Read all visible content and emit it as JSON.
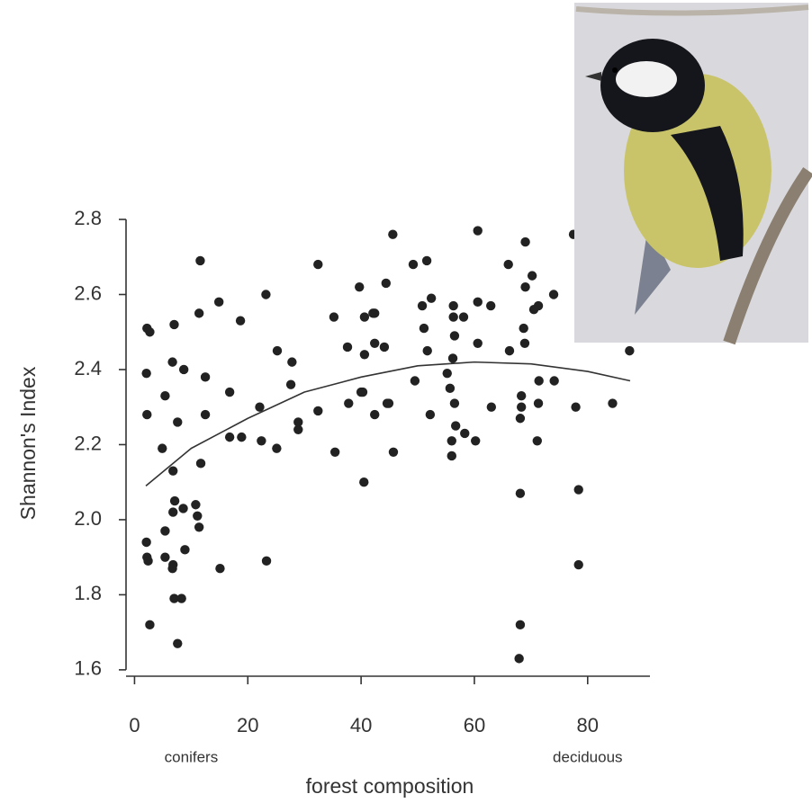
{
  "chart_data": {
    "type": "scatter",
    "x_label": "forest composition",
    "y_label": "Shannon's Index",
    "annotations": [
      "conifers",
      "deciduous"
    ],
    "xlim": [
      -1.5,
      91
    ],
    "ylim": [
      1.583,
      2.83
    ],
    "xticks": [
      0,
      20,
      40,
      60,
      80
    ],
    "yticks": [
      {
        "value": 1.6,
        "label": "1.6"
      },
      {
        "value": 1.8,
        "label": "1.8"
      },
      {
        "value": 2.0,
        "label": "2.0"
      },
      {
        "value": 2.2,
        "label": "2.2"
      },
      {
        "value": 2.4,
        "label": "2.4"
      },
      {
        "value": 2.6,
        "label": "2.6"
      },
      {
        "value": 2.8,
        "label": "2.8"
      }
    ],
    "series": [
      {
        "color": "#222222",
        "x": [
          2.2,
          2.7,
          2.1,
          2.2,
          2.1,
          2.2,
          2.4,
          2.7,
          4.9,
          5.4,
          5.4,
          5.4,
          7.0,
          6.7,
          7.6,
          8.7,
          6.8,
          7.1,
          6.8,
          6.8,
          6.7,
          7.0,
          8.3,
          7.6,
          8.6,
          8.9,
          10.8,
          11.1,
          11.4,
          11.6,
          11.4,
          12.5,
          12.5,
          11.7,
          14.9,
          15.1,
          16.8,
          16.8,
          18.7,
          18.9,
          22.1,
          22.4,
          23.2,
          23.3,
          25.2,
          25.1,
          27.6,
          27.8,
          28.9,
          28.9,
          32.4,
          32.4,
          35.2,
          35.4,
          37.6,
          37.8,
          39.7,
          40.0,
          40.3,
          40.6,
          40.6,
          40.5,
          42.1,
          42.4,
          42.4,
          42.4,
          44.1,
          44.4,
          44.6,
          44.9,
          45.6,
          45.7,
          49.2,
          49.5,
          50.8,
          51.1,
          51.6,
          51.7,
          52.2,
          52.4,
          55.2,
          55.7,
          56.0,
          56.0,
          56.2,
          56.3,
          56.3,
          56.5,
          56.5,
          56.7,
          58.1,
          58.3,
          60.2,
          60.6,
          60.6,
          60.6,
          62.9,
          63.0,
          66.0,
          66.2,
          68.1,
          68.1,
          67.9,
          68.1,
          68.3,
          68.3,
          68.7,
          68.9,
          69.0,
          69.0,
          70.2,
          70.5,
          71.3,
          71.3,
          71.1,
          71.4,
          74.0,
          74.1,
          77.9,
          78.4,
          78.4,
          77.5,
          84.4,
          87.4
        ],
        "values": [
          2.51,
          2.5,
          2.39,
          2.28,
          1.94,
          1.9,
          1.89,
          1.72,
          2.19,
          2.33,
          1.97,
          1.9,
          2.52,
          2.42,
          2.26,
          2.4,
          2.13,
          2.05,
          2.02,
          1.88,
          1.87,
          1.79,
          1.79,
          1.67,
          2.03,
          1.92,
          2.04,
          2.01,
          1.98,
          2.69,
          2.55,
          2.38,
          2.28,
          2.15,
          2.58,
          1.87,
          2.34,
          2.22,
          2.53,
          2.22,
          2.3,
          2.21,
          2.6,
          1.89,
          2.45,
          2.19,
          2.36,
          2.42,
          2.26,
          2.24,
          2.68,
          2.29,
          2.54,
          2.18,
          2.46,
          2.31,
          2.62,
          2.34,
          2.34,
          2.54,
          2.44,
          2.1,
          2.55,
          2.55,
          2.47,
          2.28,
          2.46,
          2.63,
          2.31,
          2.31,
          2.76,
          2.18,
          2.68,
          2.37,
          2.57,
          2.51,
          2.69,
          2.45,
          2.28,
          2.59,
          2.39,
          2.35,
          2.21,
          2.17,
          2.43,
          2.57,
          2.54,
          2.49,
          2.31,
          2.25,
          2.54,
          2.23,
          2.21,
          2.77,
          2.58,
          2.47,
          2.57,
          2.3,
          2.68,
          2.45,
          2.07,
          1.72,
          1.63,
          2.27,
          2.33,
          2.3,
          2.51,
          2.47,
          2.74,
          2.62,
          2.65,
          2.56,
          2.57,
          2.31,
          2.21,
          2.37,
          2.6,
          2.37,
          2.3,
          2.08,
          1.88,
          2.76,
          2.31,
          2.45
        ]
      }
    ],
    "curve": {
      "color": "#333333",
      "x": [
        2,
        10,
        20,
        30,
        40,
        50,
        60,
        70,
        80,
        87.5
      ],
      "values": [
        2.09,
        2.19,
        2.27,
        2.34,
        2.38,
        2.41,
        2.42,
        2.415,
        2.395,
        2.37
      ]
    }
  }
}
